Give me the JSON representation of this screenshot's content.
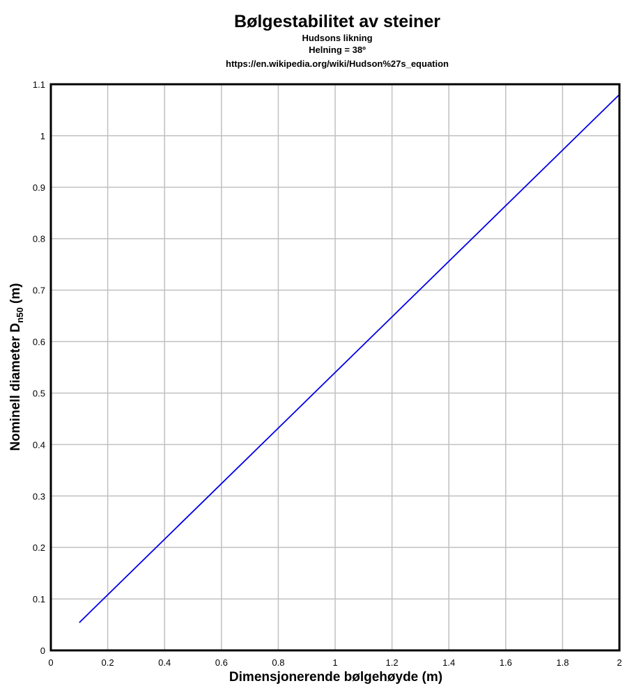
{
  "chart_data": {
    "type": "line",
    "title": "Bølgestabilitet av steiner",
    "subtitle_lines": [
      "Hudsons likning",
      "Helning = 38º",
      "https://en.wikipedia.org/wiki/Hudson%27s_equation"
    ],
    "xlabel": "Dimensjonerende bølgehøyde (m)",
    "ylabel_main": "Nominell diameter D",
    "ylabel_sub": "n50",
    "ylabel_end": " (m)",
    "xlim": [
      0,
      2
    ],
    "ylim": [
      0,
      1.1
    ],
    "x_ticks": [
      0,
      0.2,
      0.4,
      0.6,
      0.8,
      1,
      1.2,
      1.4,
      1.6,
      1.8,
      2
    ],
    "x_tick_labels": [
      "0",
      "0.2",
      "0.4",
      "0.6",
      "0.8",
      "1",
      "1.2",
      "1.4",
      "1.6",
      "1.8",
      "2"
    ],
    "y_ticks": [
      0,
      0.1,
      0.2,
      0.3,
      0.4,
      0.5,
      0.6,
      0.7,
      0.8,
      0.9,
      1,
      1.1
    ],
    "y_tick_labels": [
      "0",
      "0.1",
      "0.2",
      "0.3",
      "0.4",
      "0.5",
      "0.6",
      "0.7",
      "0.8",
      "0.9",
      "1",
      "1.1"
    ],
    "grid": true,
    "series": [
      {
        "color": "#0000e6",
        "x": [
          0.1,
          2.0
        ],
        "y": [
          0.054,
          1.08
        ]
      }
    ],
    "colors": {
      "grid": "#c0c0c0",
      "frame": "#000000"
    }
  }
}
